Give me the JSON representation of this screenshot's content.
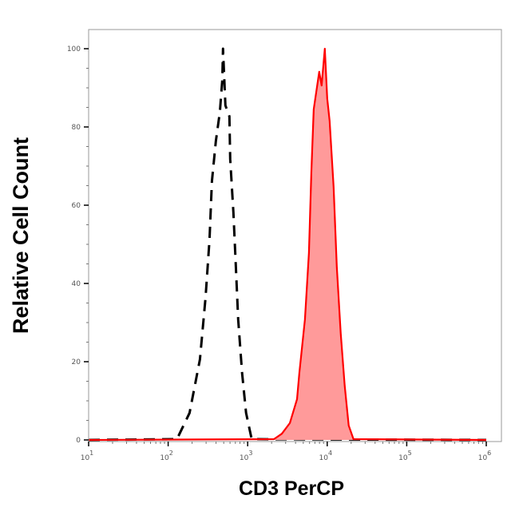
{
  "chart_data": {
    "type": "area",
    "title": "",
    "xlabel": "CD3 PerCP",
    "ylabel": "Relative Cell Count",
    "x_scale": "log",
    "xlim": [
      10,
      1550000
    ],
    "ylim": [
      0,
      105
    ],
    "x_ticks": [
      {
        "base": "10",
        "exp": "1",
        "value": 10
      },
      {
        "base": "10",
        "exp": "2",
        "value": 100
      },
      {
        "base": "10",
        "exp": "3",
        "value": 1000
      },
      {
        "base": "10",
        "exp": "4",
        "value": 10000
      },
      {
        "base": "10",
        "exp": "5",
        "value": 100000
      },
      {
        "base": "10",
        "exp": "6",
        "value": 1000000
      }
    ],
    "y_ticks": [
      "0",
      "20",
      "40",
      "60",
      "80",
      "100"
    ],
    "grid": false,
    "legend": "none",
    "series": [
      {
        "style": "dashed-line",
        "color": "#000000",
        "fill": "none",
        "points": [
          [
            10,
            0
          ],
          [
            129,
            0.2
          ],
          [
            186,
            6.9
          ],
          [
            251,
            20.6
          ],
          [
            295,
            36.3
          ],
          [
            331,
            51.2
          ],
          [
            355,
            66.1
          ],
          [
            398,
            76.3
          ],
          [
            447,
            83.9
          ],
          [
            479,
            92.0
          ],
          [
            490,
            100
          ],
          [
            525,
            85.5
          ],
          [
            589,
            82.7
          ],
          [
            603,
            71.8
          ],
          [
            661,
            58.2
          ],
          [
            708,
            44.7
          ],
          [
            759,
            30.8
          ],
          [
            851,
            17.1
          ],
          [
            955,
            6.9
          ],
          [
            1122,
            0.2
          ],
          [
            1000000,
            0
          ]
        ]
      },
      {
        "style": "filled",
        "color": "#ff0000",
        "fill": "#ff9a9a",
        "points": [
          [
            10,
            0
          ],
          [
            2138,
            0.2
          ],
          [
            2692,
            1.6
          ],
          [
            3388,
            4.3
          ],
          [
            4169,
            10.4
          ],
          [
            4467,
            17.1
          ],
          [
            5248,
            30.8
          ],
          [
            5888,
            47.8
          ],
          [
            6310,
            68.2
          ],
          [
            6761,
            84.5
          ],
          [
            7943,
            94.1
          ],
          [
            8511,
            90.6
          ],
          [
            9333,
            100
          ],
          [
            10000,
            87.3
          ],
          [
            10715,
            81.6
          ],
          [
            12023,
            64.7
          ],
          [
            13183,
            44.3
          ],
          [
            14791,
            27.3
          ],
          [
            16596,
            13.9
          ],
          [
            18621,
            3.7
          ],
          [
            21380,
            0.2
          ],
          [
            1000000,
            0
          ]
        ]
      }
    ]
  }
}
